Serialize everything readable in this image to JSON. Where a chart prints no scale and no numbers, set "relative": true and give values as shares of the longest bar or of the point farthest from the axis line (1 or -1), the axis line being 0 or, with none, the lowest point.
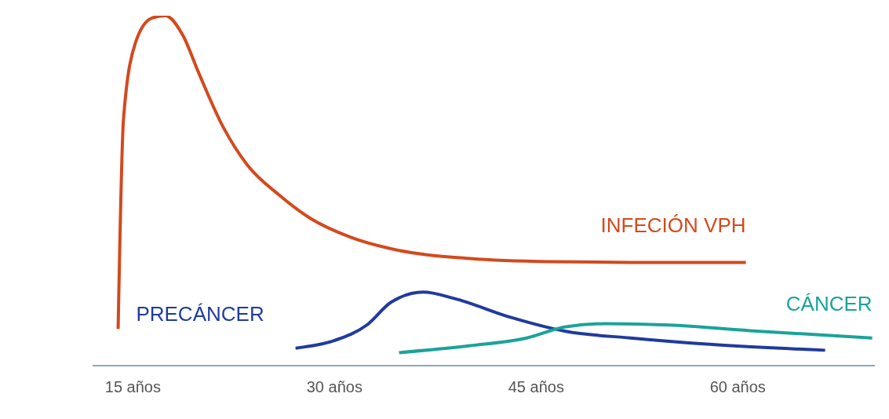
{
  "chart_data": {
    "type": "line",
    "relative": true,
    "xlim": [
      12,
      70.2
    ],
    "xticks": [
      {
        "value": 15,
        "label": "15 años"
      },
      {
        "value": 30,
        "label": "30 años"
      },
      {
        "value": 45,
        "label": "45 años"
      },
      {
        "value": 60,
        "label": "60 años"
      }
    ],
    "marker": "none",
    "line_style": "solid",
    "series": [
      {
        "name": "INFECIÓN VPH",
        "color": "#d24a1e",
        "x": [
          13.9,
          14.3,
          15.2,
          16.4,
          17.4,
          18.7,
          19.9,
          21.7,
          23.5,
          25.9,
          28.2,
          31.2,
          34.2,
          40.1,
          46.1,
          52,
          60.6
        ],
        "values": [
          0.105,
          0.705,
          0.924,
          0.993,
          1,
          0.945,
          0.836,
          0.683,
          0.574,
          0.487,
          0.421,
          0.367,
          0.334,
          0.306,
          0.297,
          0.295,
          0.295
        ]
      },
      {
        "name": "PRECÁNCER",
        "color": "#1f3b9e",
        "x": [
          27.1,
          30,
          32.4,
          34.2,
          36.6,
          38.9,
          43.1,
          47.2,
          52,
          57.9,
          66.5
        ],
        "values": [
          0.05,
          0.072,
          0.116,
          0.181,
          0.21,
          0.192,
          0.138,
          0.098,
          0.079,
          0.061,
          0.044
        ]
      },
      {
        "name": "CÁNCER",
        "color": "#1aa39a",
        "x": [
          34.8,
          40.1,
          44.3,
          47.2,
          50.2,
          54.9,
          60.9,
          70
        ],
        "values": [
          0.037,
          0.057,
          0.079,
          0.111,
          0.12,
          0.116,
          0.1,
          0.079
        ]
      }
    ]
  }
}
